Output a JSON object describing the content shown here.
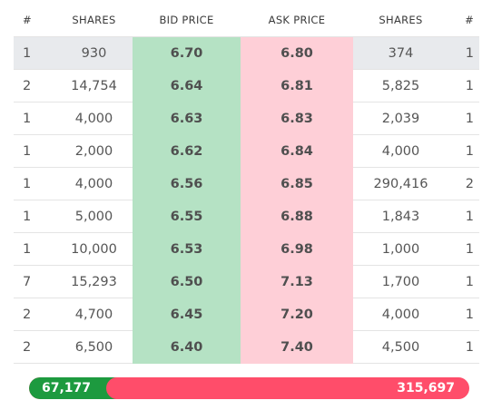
{
  "columns": {
    "bid_orders": "#",
    "bid_shares": "SHARES",
    "bid_price": "BID PRICE",
    "ask_price": "ASK PRICE",
    "ask_shares": "SHARES",
    "ask_orders": "#"
  },
  "rows": [
    {
      "bid_orders": "1",
      "bid_shares": "930",
      "bid_price": "6.70",
      "ask_price": "6.80",
      "ask_shares": "374",
      "ask_orders": "1"
    },
    {
      "bid_orders": "2",
      "bid_shares": "14,754",
      "bid_price": "6.64",
      "ask_price": "6.81",
      "ask_shares": "5,825",
      "ask_orders": "1"
    },
    {
      "bid_orders": "1",
      "bid_shares": "4,000",
      "bid_price": "6.63",
      "ask_price": "6.83",
      "ask_shares": "2,039",
      "ask_orders": "1"
    },
    {
      "bid_orders": "1",
      "bid_shares": "2,000",
      "bid_price": "6.62",
      "ask_price": "6.84",
      "ask_shares": "4,000",
      "ask_orders": "1"
    },
    {
      "bid_orders": "1",
      "bid_shares": "4,000",
      "bid_price": "6.56",
      "ask_price": "6.85",
      "ask_shares": "290,416",
      "ask_orders": "2"
    },
    {
      "bid_orders": "1",
      "bid_shares": "5,000",
      "bid_price": "6.55",
      "ask_price": "6.88",
      "ask_shares": "1,843",
      "ask_orders": "1"
    },
    {
      "bid_orders": "1",
      "bid_shares": "10,000",
      "bid_price": "6.53",
      "ask_price": "6.98",
      "ask_shares": "1,000",
      "ask_orders": "1"
    },
    {
      "bid_orders": "7",
      "bid_shares": "15,293",
      "bid_price": "6.50",
      "ask_price": "7.13",
      "ask_shares": "1,700",
      "ask_orders": "1"
    },
    {
      "bid_orders": "2",
      "bid_shares": "4,700",
      "bid_price": "6.45",
      "ask_price": "7.20",
      "ask_shares": "4,000",
      "ask_orders": "1"
    },
    {
      "bid_orders": "2",
      "bid_shares": "6,500",
      "bid_price": "6.40",
      "ask_price": "7.40",
      "ask_shares": "4,500",
      "ask_orders": "1"
    }
  ],
  "totals": {
    "bid_total": "67,177",
    "ask_total": "315,697",
    "bid_fraction": 0.176
  },
  "colors": {
    "bid_cell": "#b5e2c4",
    "ask_cell": "#fecfd7",
    "bid_bar": "#1d9a3f",
    "ask_bar": "#ff4d6a",
    "best_row": "#e8eaed"
  }
}
